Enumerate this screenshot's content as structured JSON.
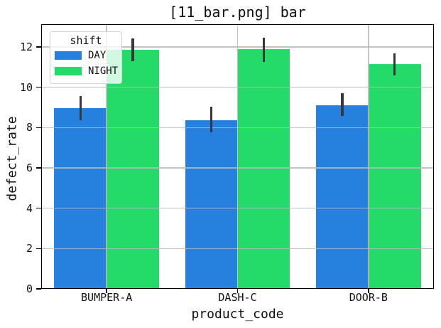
{
  "chart_data": {
    "type": "bar",
    "title": "[11_bar.png] bar",
    "xlabel": "product_code",
    "ylabel": "defect_rate",
    "categories": [
      "BUMPER-A",
      "DASH-C",
      "DOOR-B"
    ],
    "series": [
      {
        "name": "DAY",
        "color": "#2680de",
        "values": [
          8.95,
          8.35,
          9.1
        ],
        "error_low": [
          8.37,
          7.78,
          8.57
        ],
        "error_high": [
          9.57,
          9.03,
          9.72
        ]
      },
      {
        "name": "NIGHT",
        "color": "#24da69",
        "values": [
          11.87,
          11.88,
          11.17
        ],
        "error_low": [
          11.3,
          11.25,
          10.6
        ],
        "error_high": [
          12.44,
          12.47,
          11.68
        ]
      }
    ],
    "legend": {
      "title": "shift",
      "position": "upper left"
    },
    "axes": {
      "yticks": [
        0,
        2,
        4,
        6,
        8,
        10,
        12
      ],
      "ylim": [
        0,
        13.13
      ],
      "grid": true
    },
    "colors": {
      "error_bar": "#383838",
      "grid": "#b8b8b8",
      "spine": "#000000",
      "text": "#111111"
    }
  }
}
